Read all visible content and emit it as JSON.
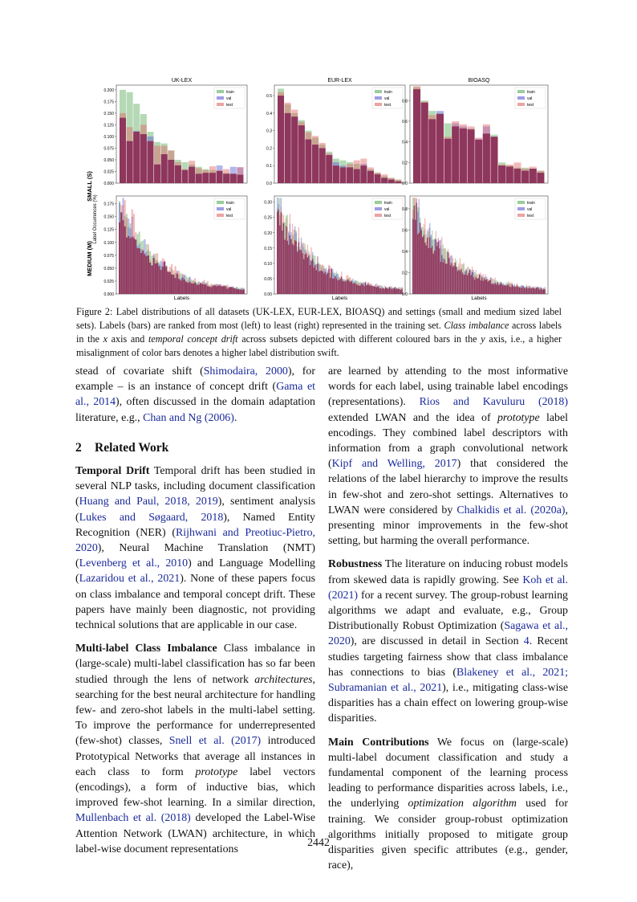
{
  "figure": {
    "row_labels": [
      "SMALL (S)",
      "MEDIUM (M)"
    ],
    "y_axis_label": "Label Occurrences (%)",
    "x_axis_label": "Labels",
    "legend": [
      "train",
      "val",
      "test"
    ],
    "colors": {
      "train": "#5aaa5a",
      "val": "#5b5bd6",
      "test": "#e06666",
      "overlap": "#8b2d55"
    },
    "panel_titles": [
      "UK-LEX",
      "EUR-LEX",
      "BIOASQ"
    ],
    "small_yticks": [
      [
        "0.200",
        "0.175",
        "0.150",
        "0.125",
        "0.100",
        "0.075",
        "0.050",
        "0.025",
        "0.000"
      ],
      [
        "0.5",
        "0.4",
        "0.3",
        "0.2",
        "0.1",
        "0.0"
      ],
      [
        "0.8",
        "0.6",
        "0.4",
        "0.2",
        "0.0"
      ]
    ],
    "medium_yticks": [
      [
        "0.175",
        "0.150",
        "0.125",
        "0.100",
        "0.075",
        "0.050",
        "0.025",
        "0.000"
      ],
      [
        "0.30",
        "0.25",
        "0.20",
        "0.15",
        "0.10",
        "0.05",
        "0.00"
      ],
      [
        "0.8",
        "0.6",
        "0.4",
        "0.2",
        "0.0"
      ]
    ]
  },
  "chart_data": [
    {
      "type": "bar",
      "title": "UK-LEX",
      "row": "SMALL (S)",
      "ylim": [
        0,
        0.21
      ],
      "series": [
        {
          "name": "train",
          "values": [
            0.2,
            0.195,
            0.17,
            0.148,
            0.11,
            0.088,
            0.085,
            0.07,
            0.05,
            0.045,
            0.04,
            0.035,
            0.03,
            0.028,
            0.026,
            0.022,
            0.02,
            0.018
          ]
        },
        {
          "name": "val",
          "values": [
            0.14,
            0.09,
            0.112,
            0.105,
            0.1,
            0.04,
            0.062,
            0.05,
            0.038,
            0.028,
            0.035,
            0.02,
            0.022,
            0.022,
            0.038,
            0.02,
            0.035,
            0.034
          ]
        },
        {
          "name": "test",
          "values": [
            0.15,
            0.12,
            0.11,
            0.125,
            0.09,
            0.08,
            0.08,
            0.07,
            0.045,
            0.03,
            0.048,
            0.032,
            0.028,
            0.036,
            0.028,
            0.03,
            0.02,
            0.034
          ]
        }
      ]
    },
    {
      "type": "bar",
      "title": "EUR-LEX",
      "row": "SMALL (S)",
      "ylim": [
        0,
        0.56
      ],
      "series": [
        {
          "name": "train",
          "values": [
            0.54,
            0.45,
            0.4,
            0.36,
            0.3,
            0.26,
            0.22,
            0.18,
            0.14,
            0.13,
            0.12,
            0.11,
            0.1,
            0.08,
            0.06,
            0.04,
            0.03,
            0.02
          ]
        },
        {
          "name": "val",
          "values": [
            0.5,
            0.4,
            0.38,
            0.33,
            0.25,
            0.22,
            0.2,
            0.16,
            0.12,
            0.1,
            0.09,
            0.08,
            0.11,
            0.07,
            0.05,
            0.03,
            0.02,
            0.01
          ]
        },
        {
          "name": "test",
          "values": [
            0.52,
            0.46,
            0.42,
            0.35,
            0.29,
            0.27,
            0.23,
            0.17,
            0.1,
            0.09,
            0.11,
            0.13,
            0.14,
            0.09,
            0.06,
            0.05,
            0.03,
            0.02
          ]
        }
      ]
    },
    {
      "type": "bar",
      "title": "BIOASQ",
      "row": "SMALL (S)",
      "ylim": [
        0,
        0.95
      ],
      "series": [
        {
          "name": "train",
          "values": [
            0.93,
            0.8,
            0.7,
            0.68,
            0.58,
            0.55,
            0.53,
            0.53,
            0.42,
            0.48,
            0.47,
            0.2,
            0.17,
            0.15,
            0.15,
            0.14,
            0.12
          ]
        },
        {
          "name": "val",
          "values": [
            0.91,
            0.78,
            0.62,
            0.7,
            0.43,
            0.58,
            0.55,
            0.52,
            0.43,
            0.55,
            0.45,
            0.17,
            0.16,
            0.14,
            0.12,
            0.14,
            0.1
          ]
        },
        {
          "name": "test",
          "values": [
            0.94,
            0.79,
            0.66,
            0.67,
            0.45,
            0.6,
            0.57,
            0.55,
            0.44,
            0.57,
            0.45,
            0.18,
            0.18,
            0.2,
            0.14,
            0.16,
            0.12
          ]
        }
      ]
    },
    {
      "type": "bar",
      "title": "UK-LEX",
      "row": "MEDIUM (M)",
      "ylim": [
        0,
        0.19
      ],
      "description_count": 70
    },
    {
      "type": "bar",
      "title": "EUR-LEX",
      "row": "MEDIUM (M)",
      "ylim": [
        0,
        0.32
      ],
      "description_count": 100
    },
    {
      "type": "bar",
      "title": "BIOASQ",
      "row": "MEDIUM (M)",
      "ylim": [
        0,
        0.92
      ],
      "description_count": 110
    }
  ],
  "caption": {
    "label": "Figure 2:",
    "t1": " Label distributions of all datasets (UK-LEX, EUR-LEX, BIOASQ) and settings (small and medium sized label sets). Labels (bars) are ranked from most (left) to least (right) represented in the training set. ",
    "i1": "Class imbalance",
    "t2": " across labels in the ",
    "i2": "x",
    "t3": " axis and ",
    "i3": "temporal concept drift",
    "t4": " across subsets depicted with different coloured bars in the ",
    "i4": "y",
    "t5": " axis, i.e., a higher misalignment of color bars denotes a higher label distribution swift."
  },
  "left": {
    "p0": {
      "a": "stead of covariate shift (",
      "c1": "Shimodaira, 2000",
      "b": "), for example – is an instance of concept drift (",
      "c2": "Gama et al., 2014",
      "c": "), often discussed in the domain adaptation literature, e.g., ",
      "c3": "Chan and Ng (2006)",
      "d": "."
    },
    "section_num": "2",
    "section_title": "Related Work",
    "p1": {
      "head": "Temporal Drift",
      "a": "  Temporal drift has been studied in several NLP tasks, including document classification (",
      "c1": "Huang and Paul, 2018, 2019",
      "b": "), sentiment analysis (",
      "c2": "Lukes and Søgaard, 2018",
      "c": "), Named Entity Recognition (NER) (",
      "c3": "Rijhwani and Preotiuc-Pietro, 2020",
      "d": "), Neural Machine Translation (NMT) (",
      "c4": "Levenberg et al., 2010",
      "e": ") and Language Modelling (",
      "c5": "Lazaridou et al., 2021",
      "f": "). None of these papers focus on class imbalance and temporal concept drift. These papers have mainly been diagnostic, not providing technical solutions that are applicable in our case."
    },
    "p2": {
      "head": "Multi-label Class Imbalance",
      "a": "  Class imbalance in (large-scale) multi-label classification has so far been studied through the lens of network ",
      "i1": "architectures",
      "b": ", searching for the best neural architecture for handling few- and zero-shot labels in the multi-label setting. To improve the performance for underrepresented (few-shot) classes, ",
      "c1": "Snell et al. (2017)",
      "c": " introduced Prototypical Networks that average all instances in each class to form ",
      "i2": "prototype",
      "d": " label vectors (encodings), a form of inductive bias, which improved few-shot learning. In a similar direction, ",
      "c2": "Mullenbach et al. (2018)",
      "e": " developed the Label-Wise Attention Network (LWAN) architecture, in which label-wise document representations"
    }
  },
  "right": {
    "p1": {
      "a": "are learned by attending to the most informative words for each label, using trainable label encodings (representations). ",
      "c1": "Rios and Kavuluru (2018)",
      "b": " extended LWAN and the idea of ",
      "i1": "prototype",
      "c": " label encodings. They combined label descriptors with information from a graph convolutional network (",
      "c2": "Kipf and Welling, 2017",
      "d": ") that considered the relations of the label hierarchy to improve the results in few-shot and zero-shot settings. Alternatives to LWAN were considered by ",
      "c3": "Chalkidis et al. (2020a)",
      "e": ", presenting minor improvements in the few-shot setting, but harming the overall performance."
    },
    "p2": {
      "head": "Robustness",
      "a": "  The literature on inducing robust models from skewed data is rapidly growing. See ",
      "c1": "Koh et al. (2021)",
      "b": " for a recent survey. The group-robust learning algorithms we adapt and evaluate, e.g., Group Distributionally Robust Optimization (",
      "c2": "Sagawa et al., 2020",
      "c": "), are discussed in detail in Section ",
      "c3": "4",
      "d": ". Recent studies targeting fairness show that class imbalance has connections to bias (",
      "c4": "Blakeney et al., 2021; Subramanian et al., 2021",
      "e": "), i.e., mitigating class-wise disparities has a chain effect on lowering group-wise disparities."
    },
    "p3": {
      "head": "Main Contributions",
      "a": "  We focus on (large-scale) multi-label document classification and study a fundamental component of the learning process leading to performance disparities across labels, i.e., the underlying ",
      "i1": "optimization algorithm",
      "b": " used for training. We consider group-robust optimization algorithms initially proposed to mitigate group disparities given specific attributes (e.g., gender, race),"
    }
  },
  "page_number": "2442"
}
